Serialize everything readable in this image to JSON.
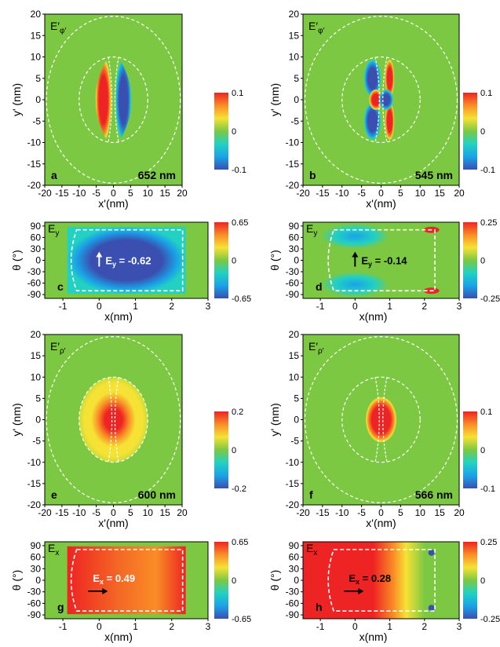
{
  "colors": {
    "scale": [
      "#3a4fb0",
      "#1aa3e8",
      "#22d1c2",
      "#7cc843",
      "#f6e234",
      "#f98d26",
      "#ee2323"
    ],
    "zero": "#7cc843",
    "guide": "#ffffff",
    "text": "#000000"
  },
  "axis_labels": {
    "yprime": "y' (nm)",
    "xprime": "x'(nm)",
    "theta": "θ (°)",
    "x": "x(nm)"
  },
  "chart_data": [
    {
      "type": "heatmap",
      "panel": "a",
      "field": "E′φ′",
      "wavelength": "652 nm",
      "xlim": [
        -20,
        20
      ],
      "ylim": [
        -20,
        20
      ],
      "xticks": [
        -20,
        -15,
        -10,
        -5,
        0,
        5,
        10,
        15,
        20
      ],
      "yticks": [
        -20,
        -15,
        -10,
        -5,
        0,
        5,
        10,
        15,
        20
      ],
      "colorbar": {
        "min": -0.1,
        "max": 0.1,
        "labels": [
          "0.1",
          "0",
          "-0.1"
        ]
      },
      "features": [
        {
          "shape": "lens",
          "side": "left",
          "sign": "positive"
        },
        {
          "shape": "lens",
          "side": "right",
          "sign": "negative"
        }
      ],
      "guides": [
        {
          "circle_r": 19.5
        },
        {
          "circle_r": 10
        }
      ]
    },
    {
      "type": "heatmap",
      "panel": "b",
      "field": "E′φ′",
      "wavelength": "545 nm",
      "xlim": [
        -20,
        20
      ],
      "ylim": [
        -20,
        20
      ],
      "xticks": [
        -20,
        -15,
        -10,
        -5,
        0,
        5,
        10,
        15,
        20
      ],
      "yticks": [
        -20,
        -15,
        -10,
        -5,
        0,
        5,
        10,
        15,
        20
      ],
      "colorbar": {
        "min": -0.1,
        "max": 0.1,
        "labels": [
          "0.1",
          "0",
          "-0.1"
        ]
      },
      "features": [
        {
          "shape": "quadrupole",
          "center": [
            0,
            0
          ],
          "sign": "alternating"
        }
      ],
      "guides": [
        {
          "circle_r": 19.5
        },
        {
          "circle_r": 10
        }
      ]
    },
    {
      "type": "heatmap",
      "panel": "c",
      "field": "Ey",
      "xlim": [
        -1.5,
        3
      ],
      "ylim": [
        -100,
        100
      ],
      "xticks": [
        -1,
        0,
        1,
        2,
        3
      ],
      "yticks": [
        90,
        60,
        30,
        0,
        -30,
        -60,
        -90
      ],
      "colorbar": {
        "min": -0.65,
        "max": 0.65,
        "labels": [
          "0.65",
          "0",
          "-0.65"
        ]
      },
      "annotation": "Ey = -0.62",
      "box": {
        "x": [
          -0.75,
          2.3
        ],
        "y": [
          -80,
          80
        ]
      }
    },
    {
      "type": "heatmap",
      "panel": "d",
      "field": "Ey",
      "xlim": [
        -1.5,
        3
      ],
      "ylim": [
        -100,
        100
      ],
      "xticks": [
        -1,
        0,
        1,
        2,
        3
      ],
      "yticks": [
        90,
        60,
        30,
        0,
        -30,
        -60,
        -90
      ],
      "colorbar": {
        "min": -0.25,
        "max": 0.25,
        "labels": [
          "0.25",
          "0",
          "-0.25"
        ]
      },
      "annotation": "Ey = -0.14",
      "box": {
        "x": [
          -0.75,
          2.3
        ],
        "y": [
          -80,
          80
        ]
      }
    },
    {
      "type": "heatmap",
      "panel": "e",
      "field": "E′ρ′",
      "wavelength": "600 nm",
      "xlim": [
        -20,
        20
      ],
      "ylim": [
        -20,
        20
      ],
      "xticks": [
        -20,
        -15,
        -10,
        -5,
        0,
        5,
        10,
        15,
        20
      ],
      "yticks": [
        -20,
        -15,
        -10,
        -5,
        0,
        5,
        10,
        15,
        20
      ],
      "colorbar": {
        "min": -0.2,
        "max": 0.2,
        "labels": [
          "0.2",
          "0",
          "-0.2"
        ]
      },
      "features": [
        {
          "shape": "disk",
          "radius": 10,
          "sign": "positive"
        }
      ],
      "guides": [
        {
          "circle_r": 19.5
        },
        {
          "circle_r": 10
        }
      ]
    },
    {
      "type": "heatmap",
      "panel": "f",
      "field": "E′ρ′",
      "wavelength": "566 nm",
      "xlim": [
        -20,
        20
      ],
      "ylim": [
        -20,
        20
      ],
      "xticks": [
        -20,
        -15,
        -10,
        -5,
        0,
        5,
        10,
        15,
        20
      ],
      "yticks": [
        -20,
        -15,
        -10,
        -5,
        0,
        5,
        10,
        15,
        20
      ],
      "colorbar": {
        "min": -0.1,
        "max": 0.1,
        "labels": [
          "0.1",
          "0",
          "-0.1"
        ]
      },
      "features": [
        {
          "shape": "spot",
          "radius": 4,
          "sign": "positive"
        }
      ],
      "guides": [
        {
          "circle_r": 19.5
        },
        {
          "circle_r": 10
        }
      ]
    },
    {
      "type": "heatmap",
      "panel": "g",
      "field": "Ex",
      "xlim": [
        -1.5,
        3
      ],
      "ylim": [
        -100,
        100
      ],
      "xticks": [
        -1,
        0,
        1,
        2,
        3
      ],
      "yticks": [
        90,
        60,
        30,
        0,
        -30,
        -60,
        -90
      ],
      "colorbar": {
        "min": -0.65,
        "max": 0.65,
        "labels": [
          "0.65",
          "0",
          "-0.65"
        ]
      },
      "annotation": "Ex = 0.49",
      "box": {
        "x": [
          -0.75,
          2.3
        ],
        "y": [
          -80,
          80
        ]
      }
    },
    {
      "type": "heatmap",
      "panel": "h",
      "field": "Ex",
      "xlim": [
        -1.5,
        3
      ],
      "ylim": [
        -100,
        100
      ],
      "xticks": [
        -1,
        0,
        1,
        2,
        3
      ],
      "yticks": [
        90,
        60,
        30,
        0,
        -30,
        -60,
        -90
      ],
      "colorbar": {
        "min": -0.25,
        "max": 0.25,
        "labels": [
          "0.25",
          "0",
          "-0.25"
        ]
      },
      "annotation": "Ex = 0.28",
      "box": {
        "x": [
          -0.75,
          2.3
        ],
        "y": [
          -80,
          80
        ]
      }
    }
  ]
}
